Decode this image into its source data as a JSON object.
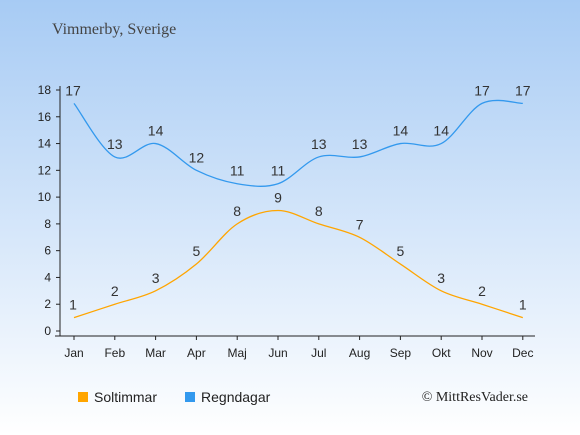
{
  "title": "Vimmerby, Sverige",
  "credit": "© MittResVader.se",
  "colors": {
    "sun": "#ffa500",
    "rain": "#3399ee",
    "axis": "#222222"
  },
  "chart_data": {
    "type": "line",
    "categories": [
      "Jan",
      "Feb",
      "Mar",
      "Apr",
      "Maj",
      "Jun",
      "Jul",
      "Aug",
      "Sep",
      "Okt",
      "Nov",
      "Dec"
    ],
    "series": [
      {
        "name": "Soltimmar",
        "values": [
          1,
          2,
          3,
          5,
          8,
          9,
          8,
          7,
          5,
          3,
          2,
          1
        ]
      },
      {
        "name": "Regndagar",
        "values": [
          17,
          13,
          14,
          12,
          11,
          11,
          13,
          13,
          14,
          14,
          17,
          17
        ]
      }
    ],
    "yticks": [
      0,
      2,
      4,
      6,
      8,
      10,
      12,
      14,
      16,
      18
    ],
    "ylim": [
      0,
      18
    ],
    "grid": false,
    "legend_position": "bottom-left"
  }
}
